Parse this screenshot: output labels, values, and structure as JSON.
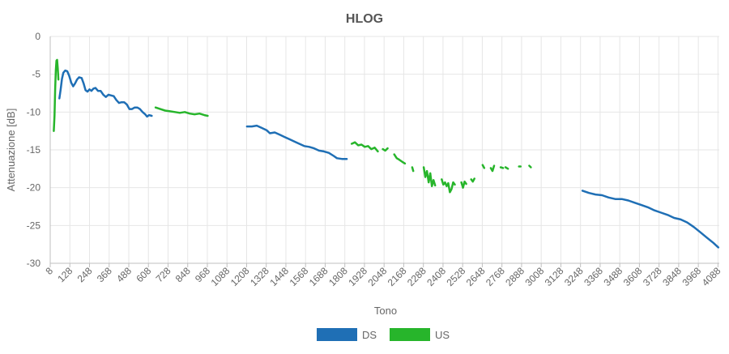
{
  "chart_data": {
    "type": "line",
    "title": "HLOG",
    "xlabel": "Tono",
    "ylabel": "Attenuazione [dB]",
    "xlim": [
      8,
      4096
    ],
    "ylim": [
      -30,
      0
    ],
    "x_ticks": [
      8,
      128,
      248,
      368,
      488,
      608,
      728,
      848,
      968,
      1088,
      1208,
      1328,
      1448,
      1568,
      1688,
      1808,
      1928,
      2048,
      2168,
      2288,
      2408,
      2528,
      2648,
      2768,
      2888,
      3008,
      3128,
      3248,
      3368,
      3488,
      3608,
      3728,
      3848,
      3968,
      4088
    ],
    "y_ticks": [
      0,
      -5,
      -10,
      -15,
      -20,
      -25,
      -30
    ],
    "grid": true,
    "legend_position": "bottom",
    "series": [
      {
        "name": "DS",
        "color": "#1f6fb5",
        "segments": [
          [
            [
              64,
              -8.2
            ],
            [
              72,
              -7.0
            ],
            [
              80,
              -5.6
            ],
            [
              88,
              -4.8
            ],
            [
              100,
              -4.5
            ],
            [
              112,
              -4.6
            ],
            [
              124,
              -5.2
            ],
            [
              136,
              -6.1
            ],
            [
              148,
              -6.6
            ],
            [
              160,
              -6.2
            ],
            [
              172,
              -5.7
            ],
            [
              184,
              -5.4
            ],
            [
              200,
              -5.5
            ],
            [
              212,
              -6.2
            ],
            [
              224,
              -7.1
            ],
            [
              236,
              -7.3
            ],
            [
              248,
              -7.0
            ],
            [
              260,
              -7.2
            ],
            [
              272,
              -6.9
            ],
            [
              284,
              -6.8
            ],
            [
              300,
              -7.2
            ],
            [
              316,
              -7.2
            ],
            [
              332,
              -7.7
            ],
            [
              348,
              -8.0
            ],
            [
              364,
              -7.7
            ],
            [
              380,
              -7.8
            ],
            [
              396,
              -7.9
            ],
            [
              412,
              -8.4
            ],
            [
              428,
              -8.8
            ],
            [
              444,
              -8.7
            ],
            [
              460,
              -8.7
            ],
            [
              476,
              -9.0
            ],
            [
              492,
              -9.6
            ],
            [
              508,
              -9.6
            ],
            [
              524,
              -9.4
            ],
            [
              540,
              -9.4
            ],
            [
              556,
              -9.6
            ],
            [
              572,
              -10.0
            ],
            [
              588,
              -10.3
            ],
            [
              600,
              -10.6
            ],
            [
              612,
              -10.4
            ],
            [
              628,
              -10.5
            ]
          ],
          [
            [
              1210,
              -11.9
            ],
            [
              1240,
              -11.9
            ],
            [
              1270,
              -11.8
            ],
            [
              1300,
              -12.1
            ],
            [
              1330,
              -12.4
            ],
            [
              1350,
              -12.8
            ],
            [
              1380,
              -12.7
            ],
            [
              1410,
              -13.0
            ],
            [
              1440,
              -13.3
            ],
            [
              1470,
              -13.6
            ],
            [
              1500,
              -13.9
            ],
            [
              1530,
              -14.2
            ],
            [
              1560,
              -14.5
            ],
            [
              1590,
              -14.6
            ],
            [
              1620,
              -14.8
            ],
            [
              1650,
              -15.1
            ],
            [
              1680,
              -15.2
            ],
            [
              1710,
              -15.4
            ],
            [
              1740,
              -15.8
            ],
            [
              1760,
              -16.1
            ],
            [
              1790,
              -16.2
            ],
            [
              1820,
              -16.2
            ]
          ],
          [
            [
              3260,
              -20.4
            ],
            [
              3300,
              -20.7
            ],
            [
              3340,
              -20.9
            ],
            [
              3380,
              -21.0
            ],
            [
              3420,
              -21.3
            ],
            [
              3460,
              -21.5
            ],
            [
              3500,
              -21.5
            ],
            [
              3540,
              -21.7
            ],
            [
              3580,
              -22.0
            ],
            [
              3620,
              -22.3
            ],
            [
              3660,
              -22.6
            ],
            [
              3700,
              -23.0
            ],
            [
              3740,
              -23.3
            ],
            [
              3780,
              -23.6
            ],
            [
              3820,
              -24.0
            ],
            [
              3860,
              -24.2
            ],
            [
              3900,
              -24.6
            ],
            [
              3940,
              -25.2
            ],
            [
              3980,
              -25.9
            ],
            [
              4020,
              -26.6
            ],
            [
              4060,
              -27.3
            ],
            [
              4090,
              -27.9
            ]
          ]
        ]
      },
      {
        "name": "US",
        "color": "#27b52b",
        "segments": [
          [
            [
              30,
              -12.5
            ],
            [
              34,
              -10.5
            ],
            [
              38,
              -7.0
            ],
            [
              42,
              -4.5
            ],
            [
              46,
              -3.2
            ],
            [
              50,
              -3.1
            ],
            [
              54,
              -4.2
            ],
            [
              58,
              -5.7
            ]
          ],
          [
            [
              652,
              -9.4
            ],
            [
              680,
              -9.6
            ],
            [
              710,
              -9.8
            ],
            [
              740,
              -9.9
            ],
            [
              770,
              -10.0
            ],
            [
              800,
              -10.1
            ],
            [
              830,
              -10.0
            ],
            [
              860,
              -10.2
            ],
            [
              890,
              -10.3
            ],
            [
              920,
              -10.2
            ],
            [
              950,
              -10.4
            ],
            [
              970,
              -10.5
            ]
          ],
          [
            [
              1850,
              -14.2
            ],
            [
              1870,
              -14.0
            ],
            [
              1890,
              -14.4
            ],
            [
              1910,
              -14.3
            ],
            [
              1930,
              -14.6
            ],
            [
              1950,
              -14.5
            ],
            [
              1970,
              -14.9
            ],
            [
              1990,
              -14.7
            ],
            [
              2010,
              -15.2
            ]
          ],
          [
            [
              2040,
              -14.9
            ],
            [
              2055,
              -15.1
            ],
            [
              2070,
              -14.8
            ]
          ],
          [
            [
              2110,
              -15.6
            ],
            [
              2125,
              -16.1
            ],
            [
              2140,
              -16.3
            ],
            [
              2160,
              -16.6
            ],
            [
              2175,
              -16.8
            ]
          ],
          [
            [
              2220,
              -17.3
            ],
            [
              2226,
              -17.8
            ]
          ],
          [
            [
              2290,
              -17.3
            ],
            [
              2300,
              -18.6
            ],
            [
              2310,
              -17.8
            ],
            [
              2320,
              -19.3
            ],
            [
              2330,
              -18.1
            ],
            [
              2340,
              -19.8
            ],
            [
              2350,
              -19.0
            ],
            [
              2360,
              -19.7
            ]
          ],
          [
            [
              2400,
              -18.9
            ],
            [
              2410,
              -19.6
            ],
            [
              2420,
              -19.3
            ],
            [
              2430,
              -19.8
            ],
            [
              2440,
              -19.4
            ],
            [
              2450,
              -20.6
            ],
            [
              2460,
              -20.2
            ],
            [
              2470,
              -19.3
            ],
            [
              2480,
              -19.6
            ]
          ],
          [
            [
              2520,
              -19.3
            ],
            [
              2530,
              -20.0
            ],
            [
              2540,
              -19.2
            ],
            [
              2550,
              -19.5
            ]
          ],
          [
            [
              2580,
              -18.9
            ],
            [
              2590,
              -19.2
            ],
            [
              2600,
              -18.8
            ]
          ],
          [
            [
              2650,
              -17.0
            ],
            [
              2660,
              -17.4
            ]
          ],
          [
            [
              2700,
              -17.4
            ],
            [
              2710,
              -17.8
            ],
            [
              2720,
              -17.1
            ]
          ],
          [
            [
              2760,
              -17.3
            ],
            [
              2775,
              -17.4
            ]
          ],
          [
            [
              2790,
              -17.3
            ],
            [
              2805,
              -17.5
            ]
          ],
          [
            [
              2872,
              -17.2
            ],
            [
              2882,
              -17.2
            ]
          ],
          [
            [
              2935,
              -17.1
            ],
            [
              2945,
              -17.3
            ]
          ]
        ]
      }
    ]
  }
}
